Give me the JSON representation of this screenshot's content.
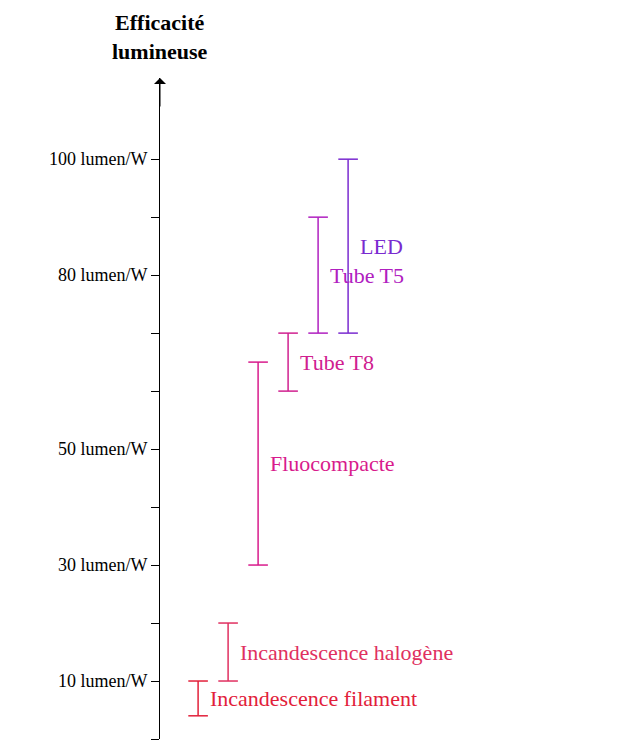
{
  "chart_data": {
    "type": "range",
    "ylabel": "Efficacité lumineuse",
    "categories": [
      "Incandescence filament",
      "Incandescence halogène",
      "Fluocompacte",
      "Tube T8",
      "Tube T5",
      "LED"
    ],
    "low": [
      4,
      10,
      30,
      60,
      70,
      70
    ],
    "high": [
      10,
      20,
      65,
      70,
      90,
      100
    ],
    "colors": [
      "#e2203a",
      "#e03060",
      "#d81b8c",
      "#d0208f",
      "#b020c0",
      "#7a2bd0"
    ],
    "ylim": [
      0,
      114
    ],
    "yticks": [
      {
        "value": 0,
        "label": null
      },
      {
        "value": 10,
        "label": "10 lumen/W"
      },
      {
        "value": 20,
        "label": null
      },
      {
        "value": 30,
        "label": "30 lumen/W"
      },
      {
        "value": 40,
        "label": null
      },
      {
        "value": 50,
        "label": "50 lumen/W"
      },
      {
        "value": 60,
        "label": null
      },
      {
        "value": 70,
        "label": null
      },
      {
        "value": 80,
        "label": "80 lumen/W"
      },
      {
        "value": 90,
        "label": null
      },
      {
        "value": 100,
        "label": "100 lumen/W"
      }
    ],
    "grid": false
  }
}
